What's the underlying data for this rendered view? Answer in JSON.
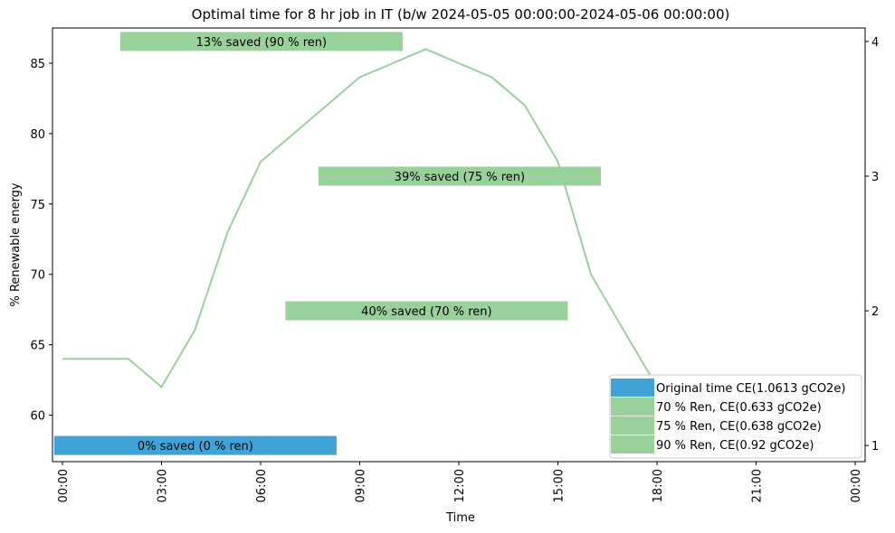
{
  "chart_data": {
    "type": "line",
    "title": "Optimal time for 8 hr job in IT (b/w 2024-05-05 00:00:00-2024-05-06 00:00:00)",
    "xlabel": "Time",
    "ylabel": "% Renewable energy",
    "ylim": [
      56.7,
      87.5
    ],
    "y2lim": [
      0.88,
      4.1
    ],
    "yticks": [
      60,
      65,
      70,
      75,
      80,
      85
    ],
    "y2ticks": [
      1,
      2,
      3,
      4
    ],
    "xlim_hours": [
      -0.3,
      24.3
    ],
    "xticks": [
      {
        "hour": 0,
        "label": "00:00"
      },
      {
        "hour": 3,
        "label": "03:00"
      },
      {
        "hour": 6,
        "label": "06:00"
      },
      {
        "hour": 9,
        "label": "09:00"
      },
      {
        "hour": 12,
        "label": "12:00"
      },
      {
        "hour": 15,
        "label": "15:00"
      },
      {
        "hour": 18,
        "label": "18:00"
      },
      {
        "hour": 21,
        "label": "21:00"
      },
      {
        "hour": 24,
        "label": "00:00"
      }
    ],
    "series": [
      {
        "color": "#99d19b",
        "x": [
          0,
          1,
          2,
          3,
          4,
          5,
          6,
          7,
          8,
          9,
          10,
          11,
          12,
          13,
          14,
          15,
          16,
          17,
          18,
          19,
          20,
          21,
          22,
          23
        ],
        "y": [
          64,
          64,
          64,
          62,
          66,
          73,
          78,
          80,
          82,
          84,
          85,
          86,
          85,
          84,
          82,
          78,
          70,
          66,
          62,
          60,
          59,
          58.5,
          58.2,
          58
        ]
      }
    ],
    "bars": [
      {
        "label": "0% saved (0 % ren)",
        "start": -0.25,
        "end": 8.3,
        "y2": 1.0,
        "color": "#3fa3d8"
      },
      {
        "label": "40% saved (70 % ren)",
        "start": 6.75,
        "end": 15.3,
        "y2": 2.0,
        "color": "#99d19b"
      },
      {
        "label": "39% saved (75 % ren)",
        "start": 7.75,
        "end": 16.3,
        "y2": 3.0,
        "color": "#99d19b"
      },
      {
        "label": "13% saved (90 % ren)",
        "start": 1.75,
        "end": 10.3,
        "y2": 4.0,
        "color": "#99d19b"
      }
    ],
    "legend": {
      "position": "bottom-right",
      "entries": [
        {
          "label": "Original time CE(1.0613 gCO2e)",
          "color": "#3fa3d8"
        },
        {
          "label": "70 % Ren, CE(0.633 gCO2e)",
          "color": "#99d19b"
        },
        {
          "label": "75 % Ren, CE(0.638 gCO2e)",
          "color": "#99d19b"
        },
        {
          "label": "90 % Ren, CE(0.92 gCO2e)",
          "color": "#99d19b"
        }
      ]
    }
  }
}
